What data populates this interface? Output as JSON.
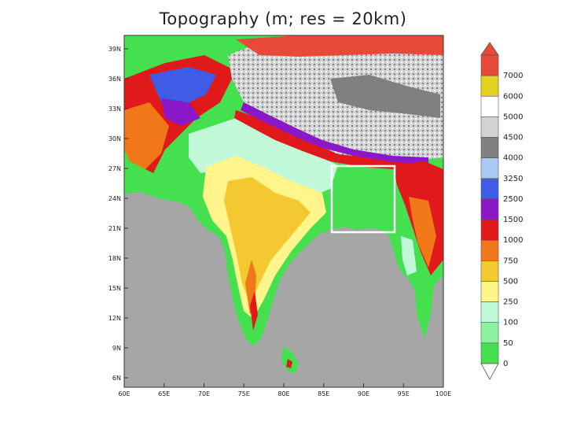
{
  "title": "Topography (m; res = 20km)",
  "map": {
    "lat_labels": [
      "39N",
      "36N",
      "33N",
      "30N",
      "27N",
      "24N",
      "21N",
      "18N",
      "15N",
      "12N",
      "9N",
      "6N"
    ],
    "lon_labels": [
      "60E",
      "65E",
      "70E",
      "75E",
      "80E",
      "85E",
      "90E",
      "95E",
      "100E"
    ]
  },
  "colorbar": {
    "levels": [
      "7000",
      "6000",
      "5000",
      "4500",
      "4000",
      "3250",
      "2500",
      "1500",
      "1000",
      "750",
      "500",
      "250",
      "100",
      "50",
      "0"
    ],
    "colors": [
      "#e84a3a",
      "#e6d020",
      "#ffffff",
      "#d2d2d2",
      "#808080",
      "#a9c8f2",
      "#3f5ce6",
      "#8a18c8",
      "#e01a1a",
      "#f07818",
      "#f4c830",
      "#fff58a",
      "#c0f8d8",
      "#8af2a0",
      "#44e050"
    ]
  },
  "colors": {
    "ocean": "#a6a6a6",
    "plain_low": "#44e050",
    "plain_mid": "#c0f8d8",
    "plateau": "#f4c830",
    "highland": "#f07818",
    "himalaya": "#e01a1a",
    "tibet": "#d2d2d2",
    "study_box": "#ffffff"
  }
}
